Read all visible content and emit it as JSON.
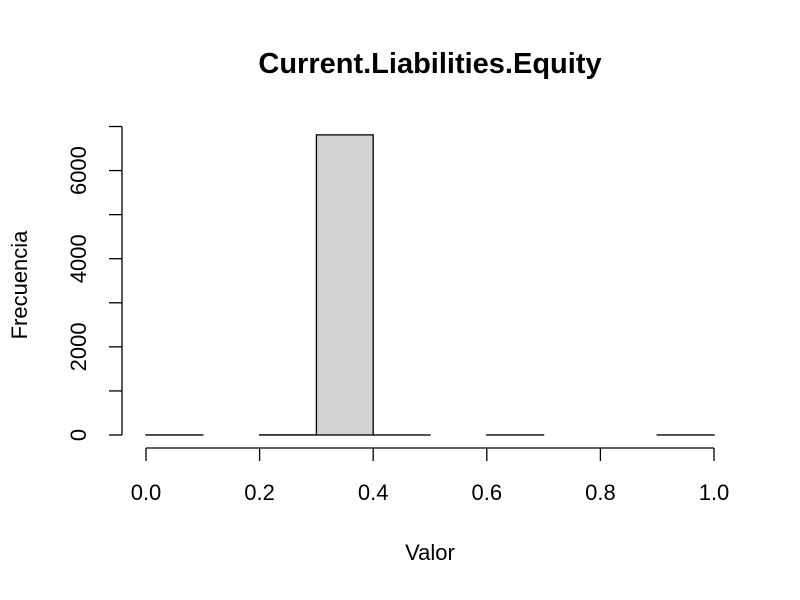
{
  "chart_data": {
    "type": "bar",
    "title": "Current.Liabilities.Equity",
    "xlabel": "Valor",
    "ylabel": "Frecuencia",
    "bin_edges": [
      0.0,
      0.1,
      0.2,
      0.3,
      0.4,
      0.5,
      0.6,
      0.7,
      0.8,
      0.9,
      1.0
    ],
    "values": [
      2,
      0,
      3,
      6810,
      1,
      0,
      1,
      0,
      0,
      1
    ],
    "xlim": [
      0.0,
      1.0
    ],
    "ylim": [
      0,
      7000
    ],
    "x_ticks": [
      0.0,
      0.2,
      0.4,
      0.6,
      0.8,
      1.0
    ],
    "x_tick_labels": [
      "0.0",
      "0.2",
      "0.4",
      "0.6",
      "0.8",
      "1.0"
    ],
    "y_ticks": [
      0,
      1000,
      2000,
      3000,
      4000,
      5000,
      6000,
      7000
    ],
    "y_tick_labels": [
      "0",
      "",
      "2000",
      "",
      "4000",
      "",
      "6000",
      ""
    ],
    "bar_color": "#d3d3d3",
    "grid": false,
    "legend": "none"
  }
}
